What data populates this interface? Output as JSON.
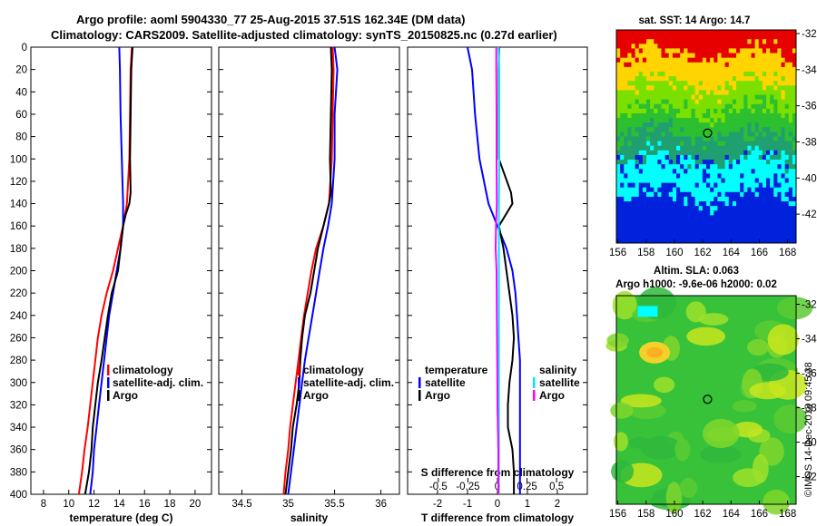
{
  "header": {
    "title_line1": "Argo profile: aoml 5904330_77 25-Aug-2015 37.51S 162.34E (DM data)",
    "title_line2": "Climatology: CARS2009. Satellite-adjusted climatology: synTS_20150825.nc (0.27d earlier)"
  },
  "watermark": "©IMOS 14-Dec-2018 09:45:38",
  "colors": {
    "climatology": "#ff0000",
    "satellite": "#0000ff",
    "argo": "#000000",
    "s_satellite": "#00e5ff",
    "s_climatology": "#ff00ff"
  },
  "chart_data": [
    {
      "type": "line",
      "id": "temperature",
      "xlabel": "temperature (deg C)",
      "ylabel": "",
      "xlim": [
        7,
        21.3
      ],
      "ylim": [
        400,
        0
      ],
      "xticks": [
        8,
        10,
        12,
        14,
        16,
        18,
        20
      ],
      "yticks": [
        0,
        20,
        40,
        60,
        80,
        100,
        120,
        140,
        160,
        180,
        200,
        220,
        240,
        260,
        280,
        300,
        320,
        340,
        360,
        380,
        400
      ],
      "legend": [
        "climatology",
        "satellite-adj. clim.",
        "Argo"
      ],
      "series": [
        {
          "name": "climatology",
          "color": "#ff0000",
          "depth": [
            0,
            20,
            60,
            100,
            140,
            160,
            180,
            200,
            220,
            240,
            260,
            280,
            300,
            320,
            340,
            360,
            380,
            400
          ],
          "values": [
            15.0,
            14.9,
            14.85,
            14.8,
            14.6,
            14.3,
            13.9,
            13.5,
            13.0,
            12.6,
            12.3,
            12.1,
            11.9,
            11.7,
            11.5,
            11.25,
            11.05,
            10.8
          ]
        },
        {
          "name": "satellite-adj. clim.",
          "color": "#0000ff",
          "depth": [
            0,
            20,
            60,
            100,
            140,
            160,
            180,
            200,
            220,
            240,
            260,
            280,
            300,
            320,
            340,
            360,
            380,
            400
          ],
          "values": [
            14.0,
            14.05,
            14.1,
            14.2,
            14.3,
            14.3,
            14.1,
            13.8,
            13.5,
            13.2,
            13.0,
            12.8,
            12.6,
            12.4,
            12.2,
            12.0,
            11.9,
            11.7
          ]
        },
        {
          "name": "Argo",
          "color": "#000000",
          "depth": [
            0,
            20,
            60,
            100,
            130,
            140,
            150,
            160,
            180,
            200,
            220,
            240,
            260,
            280,
            300,
            320,
            340,
            360,
            380,
            400
          ],
          "values": [
            15.05,
            14.95,
            14.9,
            14.85,
            14.9,
            14.8,
            14.5,
            14.3,
            14.1,
            13.9,
            13.4,
            13.1,
            12.85,
            12.6,
            12.3,
            12.1,
            11.9,
            11.8,
            11.6,
            11.3
          ]
        }
      ]
    },
    {
      "type": "line",
      "id": "salinity",
      "xlabel": "salinity",
      "ylabel": "",
      "xlim": [
        34.25,
        36.2
      ],
      "ylim": [
        400,
        0
      ],
      "xticks": [
        34.5,
        35,
        35.5,
        36
      ],
      "legend": [
        "climatology",
        "satellite-adj. clim.",
        "Argo"
      ],
      "series": [
        {
          "name": "climatology",
          "color": "#ff0000",
          "depth": [
            0,
            20,
            60,
            100,
            140,
            160,
            180,
            200,
            220,
            240,
            260,
            280,
            300,
            320,
            340,
            360,
            380,
            400
          ],
          "values": [
            35.48,
            35.49,
            35.48,
            35.47,
            35.44,
            35.38,
            35.3,
            35.25,
            35.21,
            35.17,
            35.14,
            35.11,
            35.08,
            35.05,
            35.02,
            35.0,
            34.97,
            34.95
          ]
        },
        {
          "name": "satellite-adj. clim.",
          "color": "#0000ff",
          "depth": [
            0,
            20,
            60,
            100,
            140,
            160,
            180,
            200,
            220,
            240,
            260,
            280,
            300,
            320,
            340,
            360,
            380,
            400
          ],
          "values": [
            35.5,
            35.53,
            35.5,
            35.5,
            35.47,
            35.43,
            35.38,
            35.34,
            35.3,
            35.26,
            35.22,
            35.18,
            35.15,
            35.12,
            35.09,
            35.06,
            35.03,
            35.0
          ]
        },
        {
          "name": "Argo",
          "color": "#000000",
          "depth": [
            0,
            20,
            60,
            100,
            130,
            140,
            160,
            180,
            200,
            220,
            240,
            260,
            280,
            300,
            320,
            340,
            360,
            380,
            400
          ],
          "values": [
            35.46,
            35.47,
            35.46,
            35.45,
            35.46,
            35.44,
            35.38,
            35.32,
            35.28,
            35.24,
            35.18,
            35.15,
            35.13,
            35.12,
            35.09,
            35.05,
            35.03,
            35.0,
            34.97
          ]
        }
      ]
    },
    {
      "type": "line",
      "id": "difference",
      "xlabel": "T difference from climatology",
      "xlabel_top": "S difference from climatology",
      "xlim": [
        -3,
        3
      ],
      "ylim": [
        400,
        0
      ],
      "xticks": [
        -2,
        -1,
        0,
        1,
        2
      ],
      "xticks_s": [
        -0.5,
        -0.25,
        0,
        0.25,
        0.5
      ],
      "xticks_s_labels": [
        "-0.5",
        "-0.25",
        "0",
        "0.25",
        "0.5"
      ],
      "legend_t_title": "temperature",
      "legend_t": [
        "satellite",
        "Argo"
      ],
      "legend_s_title": "salinity",
      "legend_s": [
        "satellite",
        "Argo"
      ],
      "series": [
        {
          "name": "T satellite",
          "color": "#0000ff",
          "depth": [
            0,
            20,
            60,
            100,
            140,
            160,
            180,
            200,
            220,
            240,
            260,
            280,
            300,
            320,
            340,
            360,
            380,
            400
          ],
          "values": [
            -1.0,
            -0.85,
            -0.75,
            -0.6,
            -0.3,
            0.0,
            0.3,
            0.5,
            0.6,
            0.65,
            0.7,
            0.75,
            0.75,
            0.75,
            0.75,
            0.75,
            0.75,
            0.75
          ]
        },
        {
          "name": "T Argo",
          "color": "#000000",
          "depth": [
            0,
            20,
            60,
            100,
            130,
            140,
            160,
            180,
            200,
            220,
            240,
            260,
            280,
            300,
            320,
            340,
            360,
            380,
            400
          ],
          "values": [
            0.05,
            0.05,
            0.05,
            0.05,
            0.45,
            0.5,
            0.05,
            0.2,
            0.3,
            0.4,
            0.5,
            0.55,
            0.5,
            0.4,
            0.35,
            0.35,
            0.5,
            0.55,
            0.55
          ]
        },
        {
          "name": "S satellite",
          "color": "#00e5ff",
          "depth": [
            0,
            20,
            60,
            100,
            140,
            160,
            180,
            200,
            240,
            280,
            320,
            360,
            400
          ],
          "values": [
            0.03,
            0.06,
            0.06,
            0.06,
            0.05,
            0.05,
            0.05,
            0.05,
            0.05,
            0.05,
            0.05,
            0.05,
            0.05
          ]
        },
        {
          "name": "S Argo",
          "color": "#ff00ff",
          "depth": [
            0,
            20,
            60,
            100,
            140,
            160,
            180,
            200,
            240,
            280,
            320,
            360,
            400
          ],
          "values": [
            -0.04,
            -0.04,
            -0.03,
            -0.03,
            -0.02,
            -0.05,
            -0.06,
            -0.03,
            -0.02,
            -0.01,
            0.0,
            0.03,
            0.03
          ]
        }
      ]
    },
    {
      "type": "heatmap",
      "id": "sst-map",
      "title": "sat. SST: 14 Argo: 14.7",
      "xlim": [
        155.9,
        168.6
      ],
      "ylim": [
        -43.6,
        -31.8
      ],
      "xticks": [
        156,
        158,
        160,
        162,
        164,
        166,
        168
      ],
      "yticks": [
        -32,
        -34,
        -36,
        -38,
        -40,
        -42
      ],
      "marker": {
        "lon": 162.34,
        "lat": -37.51
      }
    },
    {
      "type": "heatmap",
      "id": "sla-map",
      "title": "Altim. SLA: 0.063",
      "subtitle": "Argo h1000: -9.6e-06 h2000: 0.02",
      "xlim": [
        155.9,
        168.6
      ],
      "ylim": [
        -43.6,
        -31.5
      ],
      "xticks": [
        156,
        158,
        160,
        162,
        164,
        166,
        168
      ],
      "yticks": [
        -32,
        -34,
        -36,
        -38,
        -40,
        -42
      ],
      "marker": {
        "lon": 162.34,
        "lat": -37.51
      }
    }
  ]
}
